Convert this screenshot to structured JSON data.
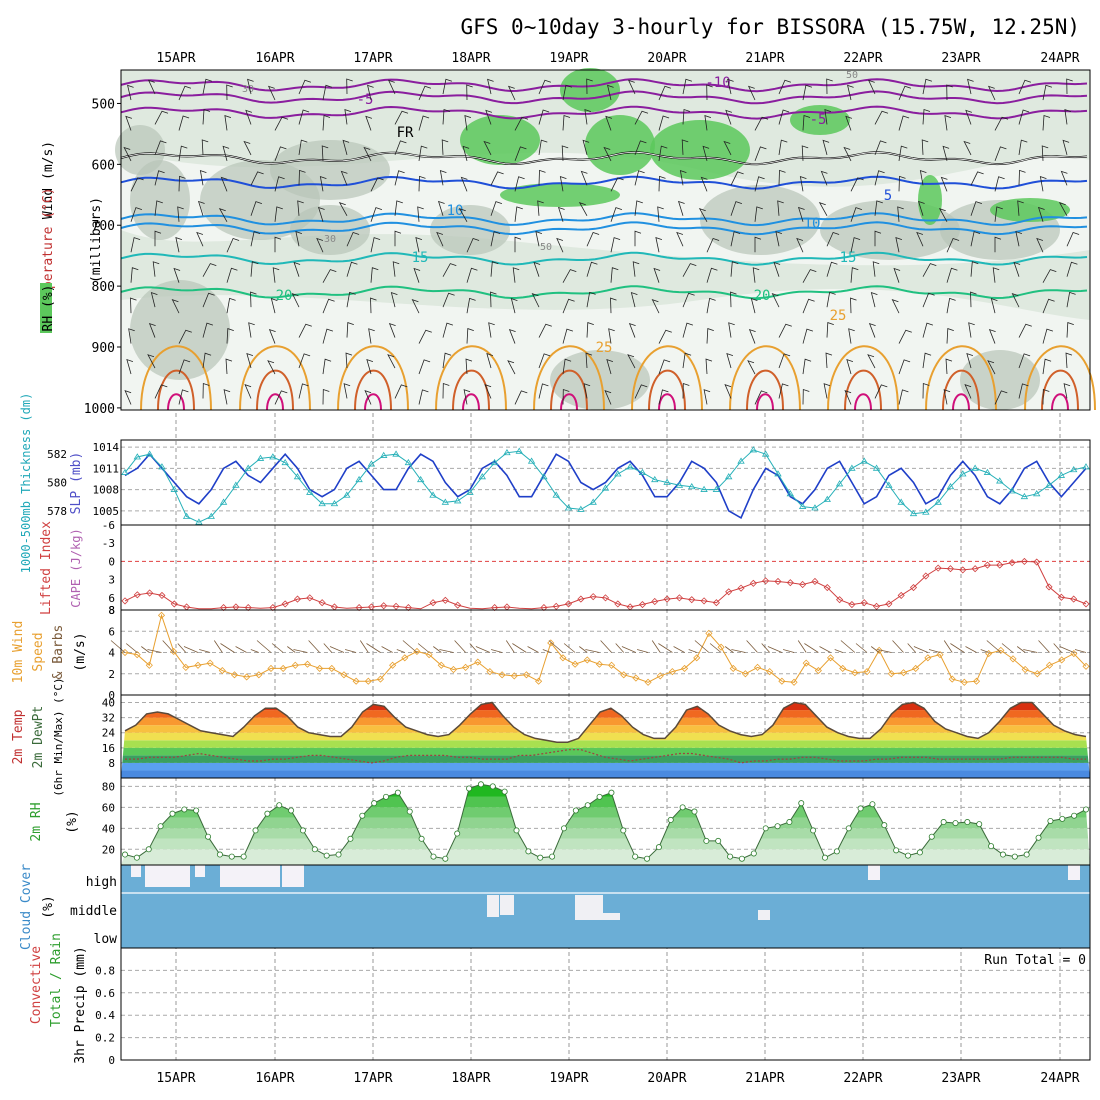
{
  "title": "GFS 0~10day 3-hourly for BISSORA (15.75W, 12.25N)",
  "dates": [
    "15APR",
    "16APR",
    "17APR",
    "18APR",
    "19APR",
    "20APR",
    "21APR",
    "22APR",
    "23APR",
    "24APR"
  ],
  "colors": {
    "temp_line": "#9a1e9e",
    "freezing": "#000000",
    "wind_barb": "#000000",
    "rh_green": "#5cc85c",
    "rh_grey": "#b8c4b8",
    "slp": "#1f3fc8",
    "thickness": "#26b0b8",
    "lifted_index": "#d04040",
    "wind_speed": "#e8a030",
    "rh2m": "#2e9e2e",
    "cloud": "#6baed6"
  },
  "panels": {
    "upper": {
      "ylabel_parts": [
        "Wind (m/s)",
        "Temperature (°C)",
        "RH (%)"
      ],
      "ylabel_right": "(millibars)",
      "pressure_ticks": [
        "500",
        "600",
        "700",
        "800",
        "900",
        "1000"
      ],
      "rh_contour_labels": [
        "30",
        "50"
      ]
    },
    "slp": {
      "ylabel_left": "1000-500mb Thickness (dm)",
      "ylabel_right": "SLP (mb)",
      "left_ticks": [
        "582",
        "580",
        "578"
      ],
      "right_ticks": [
        "1014",
        "1011",
        "1008",
        "1005"
      ]
    },
    "li": {
      "ylabel_left": "Lifted Index",
      "ylabel_right": "CAPE (J/kg)",
      "ticks": [
        "-6",
        "-3",
        "0",
        "3",
        "6"
      ]
    },
    "wind": {
      "ylabel_left": "10m Wind Speed & Barbs",
      "ylabel_right": "(m/s)",
      "ticks": [
        "8",
        "6",
        "4",
        "2",
        "0"
      ]
    },
    "temp": {
      "ylabel_lines": [
        "2m Temp",
        "2m DewPt",
        "(6hr Min/Max) (°C)"
      ],
      "ticks": [
        "40",
        "32",
        "24",
        "16",
        "8"
      ]
    },
    "rh2m": {
      "ylabel": "2m RH",
      "ylabel_unit": "(%)",
      "ticks": [
        "80",
        "60",
        "40",
        "20"
      ]
    },
    "cloud": {
      "ylabel": "Cloud Cover",
      "ylabel_unit": "(%)",
      "levels": [
        "high",
        "middle",
        "low"
      ]
    },
    "precip": {
      "ylabel_lines": [
        "Total / Rain",
        "Convective",
        "3hr Precip (mm)"
      ],
      "ticks": [
        "0.8",
        "0.6",
        "0.4",
        "0.2",
        "0"
      ],
      "run_total": "Run Total = 0"
    }
  },
  "chart_data": {
    "type": "line",
    "title": "GFS 0~10day 3-hourly for BISSORA (15.75W, 12.25N)",
    "x_axis": "time (3-hourly, 14APR 12Z to 24APR 06Z)",
    "contour_labels": {
      "temperature": [
        "-10",
        "-5",
        "FR",
        "5",
        "10",
        "15",
        "20",
        "25",
        "30"
      ],
      "freezing_level_mb": 590
    },
    "series": [
      {
        "name": "SLP (mb)",
        "values": [
          1010,
          1011,
          1013,
          1011,
          1009,
          1007,
          1006,
          1008,
          1011,
          1012,
          1010,
          1009,
          1011,
          1013,
          1011,
          1008,
          1007,
          1008,
          1011,
          1012,
          1010,
          1008,
          1008,
          1011,
          1013,
          1012,
          1009,
          1007,
          1008,
          1011,
          1012,
          1010,
          1007,
          1007,
          1010,
          1013,
          1012,
          1009,
          1008,
          1009,
          1011,
          1012,
          1010,
          1007,
          1007,
          1009,
          1012,
          1011,
          1009,
          1005,
          1004,
          1008,
          1011,
          1010,
          1007,
          1006,
          1008,
          1011,
          1012,
          1009,
          1006,
          1007,
          1010,
          1011,
          1009,
          1006,
          1007,
          1010,
          1012,
          1010,
          1007,
          1006,
          1008,
          1011,
          1012,
          1009,
          1007,
          1009,
          1011
        ]
      },
      {
        "name": "Thickness (dm)",
        "values": [
          580.7,
          581.8,
          582.0,
          581.1,
          579.5,
          577.6,
          577.2,
          577.6,
          578.6,
          579.8,
          581.0,
          581.7,
          581.8,
          581.4,
          580.4,
          579.3,
          578.5,
          578.5,
          579.1,
          580.2,
          581.3,
          581.9,
          582.0,
          581.4,
          580.2,
          579.1,
          578.6,
          578.7,
          579.3,
          580.4,
          581.4,
          582.1,
          582.2,
          581.5,
          580.4,
          579.1,
          578.2,
          578.1,
          578.6,
          579.6,
          580.6,
          581.1,
          580.7,
          580.2,
          580.0,
          579.8,
          579.7,
          579.5,
          579.5,
          580.4,
          581.5,
          582.3,
          582.0,
          580.6,
          579.2,
          578.3,
          578.2,
          578.8,
          579.9,
          581.0,
          581.5,
          581.0,
          579.8,
          578.6,
          577.8,
          577.9,
          578.6,
          579.7,
          580.6,
          581.0,
          580.7,
          580.1,
          579.4,
          579.0,
          579.2,
          579.8,
          580.5,
          580.9,
          581.1
        ]
      },
      {
        "name": "Lifted Index",
        "values": [
          6.5,
          5.5,
          5.2,
          5.6,
          7,
          7.5,
          7.8,
          7.8,
          7.6,
          7.5,
          7.6,
          7.7,
          7.6,
          7,
          6.2,
          6,
          6.8,
          7.5,
          7.7,
          7.6,
          7.5,
          7.3,
          7.4,
          7.6,
          7.8,
          6.8,
          6.4,
          7.2,
          7.7,
          7.8,
          7.6,
          7.5,
          7.7,
          7.8,
          7.6,
          7.4,
          7,
          6.2,
          5.8,
          6,
          7,
          7.5,
          7.1,
          6.6,
          6.2,
          6,
          6.3,
          6.5,
          6.8,
          5,
          4.4,
          3.6,
          3.2,
          3.3,
          3.5,
          3.8,
          3.3,
          4.3,
          6.3,
          7.1,
          6.8,
          7.4,
          7,
          5.6,
          4.3,
          2.4,
          1.1,
          1.2,
          1.4,
          1.2,
          0.6,
          0.6,
          0.2,
          0,
          0.1,
          4.2,
          5.9,
          6.2,
          7
        ]
      },
      {
        "name": "10m Wind Speed (m/s)",
        "values": [
          4,
          3.8,
          2.8,
          7.5,
          4.1,
          2.6,
          2.8,
          3,
          2.3,
          1.9,
          1.7,
          1.9,
          2.5,
          2.5,
          2.8,
          2.9,
          2.5,
          2.5,
          1.9,
          1.3,
          1.3,
          1.5,
          2.8,
          3.5,
          4.1,
          3.8,
          2.8,
          2.4,
          2.6,
          3.1,
          2.2,
          1.9,
          1.8,
          1.9,
          1.3,
          4.9,
          3.5,
          2.9,
          3.3,
          2.9,
          2.8,
          1.9,
          1.6,
          1.2,
          1.8,
          2.2,
          2.5,
          3.5,
          5.8,
          4.5,
          2.5,
          2,
          2.6,
          2.2,
          1.3,
          1.2,
          3,
          2.3,
          3.5,
          2.5,
          2.1,
          2.2,
          4.2,
          2,
          2.1,
          2.5,
          3.5,
          3.8,
          1.5,
          1.2,
          1.3,
          3.9,
          4.2,
          3.4,
          2.4,
          2,
          2.8,
          3.3,
          3.9,
          2.7
        ]
      },
      {
        "name": "2m Temp (°C)",
        "values": [
          25,
          28,
          34,
          35,
          34,
          31,
          28,
          25,
          24,
          23,
          22,
          27,
          33,
          37,
          37,
          33,
          27,
          24,
          23,
          22,
          22,
          27,
          35,
          39,
          38,
          32,
          27,
          25,
          23,
          22,
          23,
          28,
          34,
          39,
          40,
          33,
          27,
          23,
          21,
          20,
          19,
          19,
          21,
          28,
          35,
          37,
          33,
          27,
          23,
          21,
          21,
          27,
          36,
          38,
          34,
          28,
          25,
          23,
          22,
          23,
          28,
          37,
          40,
          39,
          33,
          27,
          24,
          22,
          21,
          21,
          26,
          34,
          39,
          40,
          37,
          30,
          26,
          24,
          22,
          21,
          24,
          30,
          37,
          40,
          40,
          34,
          28,
          25,
          23,
          22
        ]
      },
      {
        "name": "2m DewPt (°C)",
        "values": [
          10,
          10,
          11,
          11,
          11,
          12,
          13,
          12,
          11,
          10,
          9,
          9,
          10,
          10,
          11,
          12,
          12,
          11,
          10,
          9,
          8,
          9,
          11,
          12,
          12,
          12,
          12,
          11,
          11,
          10,
          10,
          10,
          12,
          12,
          13,
          14,
          15,
          15,
          13,
          11,
          10,
          9,
          10,
          11,
          12,
          13,
          13,
          12,
          11,
          10,
          8,
          9,
          9,
          10,
          10,
          11,
          11,
          10,
          9,
          9,
          9,
          10,
          10,
          11,
          11,
          11,
          10,
          10,
          10,
          10,
          10,
          10,
          11,
          11,
          11,
          11,
          11,
          10,
          10
        ]
      },
      {
        "name": "2m RH (%)",
        "values": [
          15,
          12,
          20,
          42,
          54,
          58,
          57,
          32,
          15,
          13,
          13,
          38,
          54,
          62,
          57,
          38,
          20,
          14,
          15,
          30,
          52,
          64,
          70,
          74,
          56,
          30,
          13,
          11,
          35,
          78,
          82,
          80,
          75,
          38,
          18,
          12,
          13,
          40,
          57,
          62,
          70,
          74,
          38,
          13,
          11,
          22,
          48,
          60,
          56,
          28,
          28,
          13,
          11,
          16,
          40,
          42,
          46,
          64,
          38,
          12,
          18,
          40,
          59,
          63,
          43,
          19,
          14,
          17,
          32,
          46,
          45,
          46,
          44,
          23,
          15,
          13,
          15,
          31,
          47,
          49,
          52,
          58
        ]
      },
      {
        "name": "3hr Precip (mm)",
        "values": [
          0
        ]
      }
    ],
    "ylim": {
      "pressure": [
        1000,
        450
      ],
      "slp": [
        1003,
        1015
      ],
      "thickness": [
        577,
        583
      ],
      "li": [
        -6,
        8
      ],
      "wind": [
        0,
        8
      ],
      "temp": [
        0,
        44
      ],
      "rh2m": [
        5,
        88
      ],
      "precip": [
        0,
        1
      ]
    },
    "legend": "none",
    "grid": true
  }
}
